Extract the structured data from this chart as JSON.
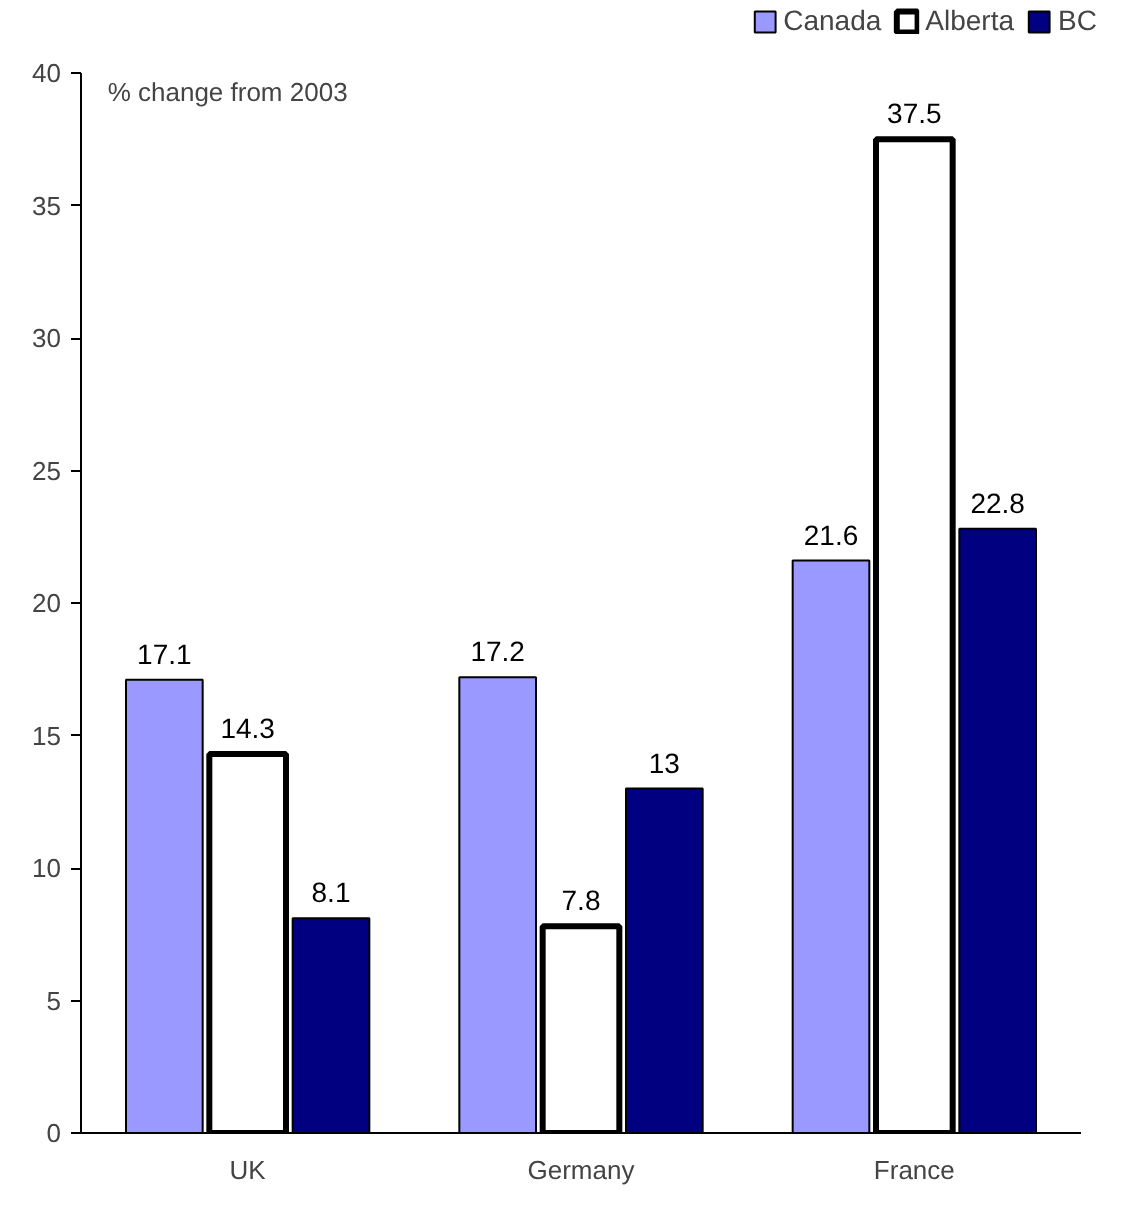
{
  "chart_data": {
    "type": "bar",
    "ylabel": "% change from 2003",
    "categories": [
      "UK",
      "Germany",
      "France"
    ],
    "series": [
      {
        "name": "Canada",
        "color": "#9999ff",
        "values": [
          17.1,
          17.2,
          21.6
        ]
      },
      {
        "name": "Alberta",
        "color": "#ffffff",
        "values": [
          14.3,
          7.8,
          37.5
        ]
      },
      {
        "name": "BC",
        "color": "#000080",
        "values": [
          8.1,
          13,
          22.8
        ]
      }
    ],
    "ylim": [
      0,
      40
    ],
    "yticks": [
      0,
      5,
      10,
      15,
      20,
      25,
      30,
      35,
      40
    ],
    "grid": false,
    "legend": "top right",
    "data_labels": true
  }
}
